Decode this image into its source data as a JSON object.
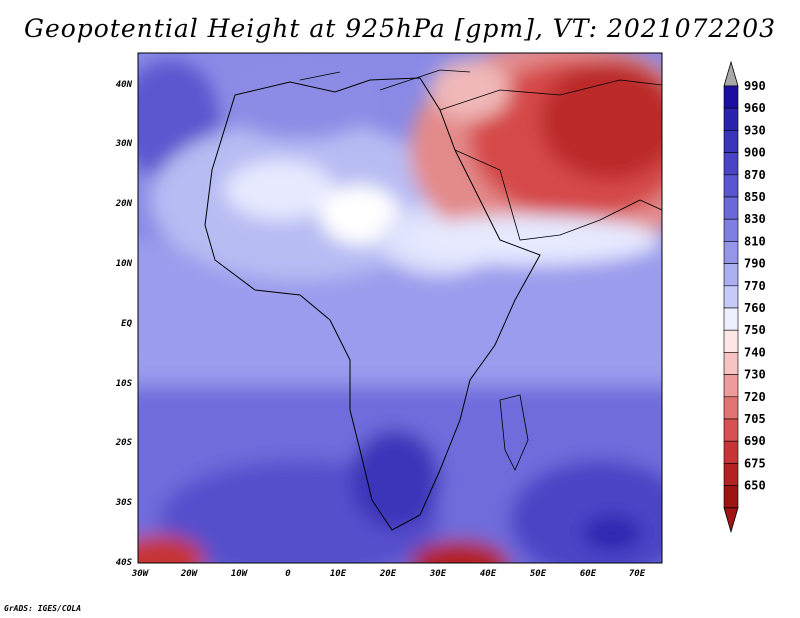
{
  "title": "Geopotential Height at 925hPa [gpm], VT: 2021072203",
  "credit": "GrADS: IGES/COLA",
  "map": {
    "lat_labels": [
      "40N",
      "30N",
      "20N",
      "10N",
      "EQ",
      "10S",
      "20S",
      "30S",
      "40S"
    ],
    "lon_labels": [
      "30W",
      "20W",
      "10W",
      "0",
      "10E",
      "20E",
      "30E",
      "40E",
      "50E",
      "60E",
      "70E"
    ]
  },
  "colorbar": {
    "levels": [
      "990",
      "960",
      "930",
      "900",
      "870",
      "850",
      "830",
      "810",
      "790",
      "770",
      "760",
      "750",
      "740",
      "730",
      "720",
      "705",
      "690",
      "675",
      "650"
    ],
    "colors": [
      "#1a0f9e",
      "#2c23ad",
      "#3c34b9",
      "#4a44c4",
      "#5a56cf",
      "#6c69d9",
      "#807ee2",
      "#9596ea",
      "#abaff1",
      "#c6cbf8",
      "#eef0ff",
      "#fde6e6",
      "#f6c2c2",
      "#ee9b9b",
      "#e37474",
      "#d65252",
      "#c63636",
      "#b22222",
      "#9a1414"
    ],
    "over_color": "#a8a8a8",
    "under_color": "#a01414"
  }
}
